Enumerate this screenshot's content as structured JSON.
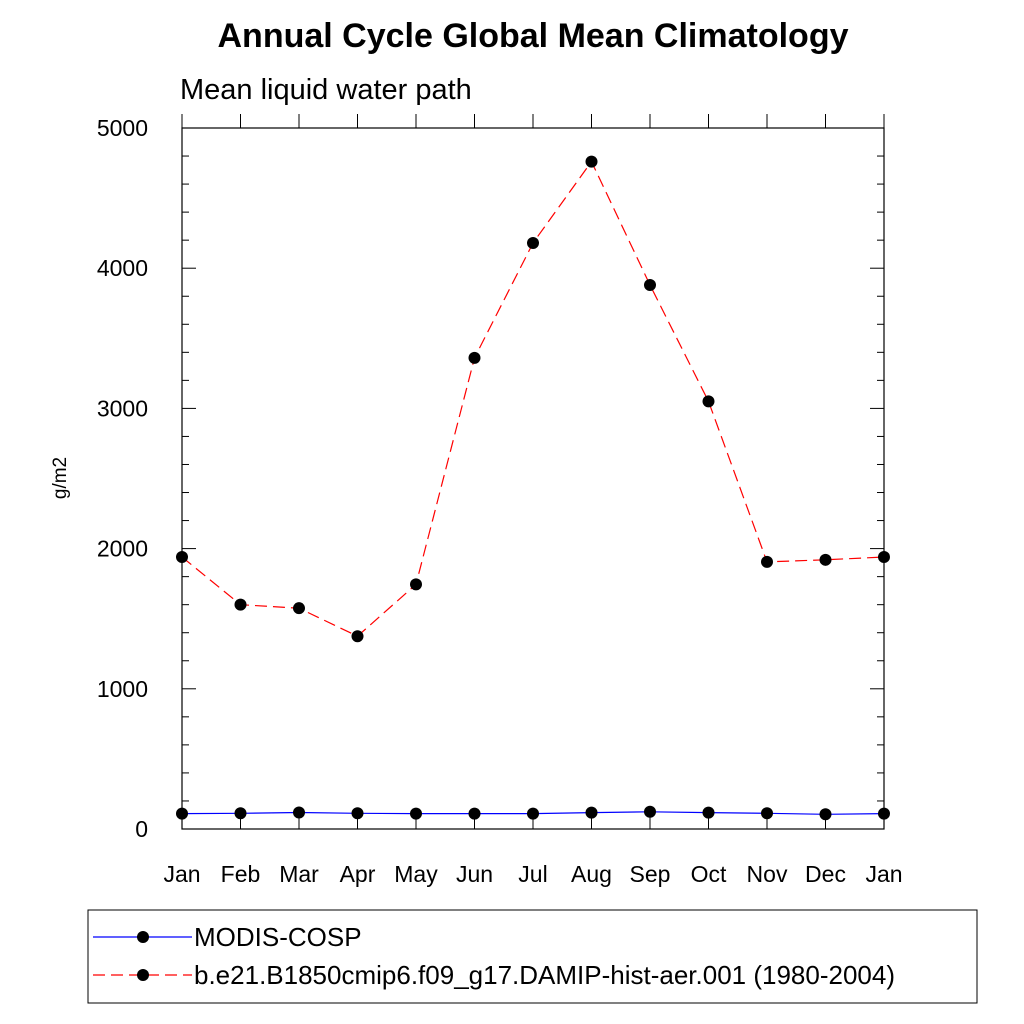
{
  "chart_data": {
    "type": "line",
    "title": "Annual Cycle Global Mean Climatology",
    "subtitle": "Mean liquid water path",
    "xlabel": "",
    "ylabel": "g/m2",
    "categories": [
      "Jan",
      "Feb",
      "Mar",
      "Apr",
      "May",
      "Jun",
      "Jul",
      "Aug",
      "Sep",
      "Oct",
      "Nov",
      "Dec",
      "Jan"
    ],
    "ylim": [
      0,
      5000
    ],
    "yticks": [
      0,
      1000,
      2000,
      3000,
      4000,
      5000
    ],
    "grid": false,
    "legend_position": "bottom",
    "series": [
      {
        "name": "MODIS-COSP",
        "color": "#0000ff",
        "style": "solid",
        "marker": "filled-circle",
        "values": [
          110,
          112,
          118,
          112,
          110,
          110,
          110,
          117,
          123,
          117,
          112,
          105,
          110
        ]
      },
      {
        "name": "b.e21.B1850cmip6.f09_g17.DAMIP-hist-aer.001 (1980-2004)",
        "color": "#ff0000",
        "style": "dashed",
        "marker": "filled-circle",
        "values": [
          1940,
          1600,
          1575,
          1375,
          1745,
          3360,
          4180,
          4760,
          3880,
          3050,
          1905,
          1920,
          1940
        ]
      }
    ]
  }
}
